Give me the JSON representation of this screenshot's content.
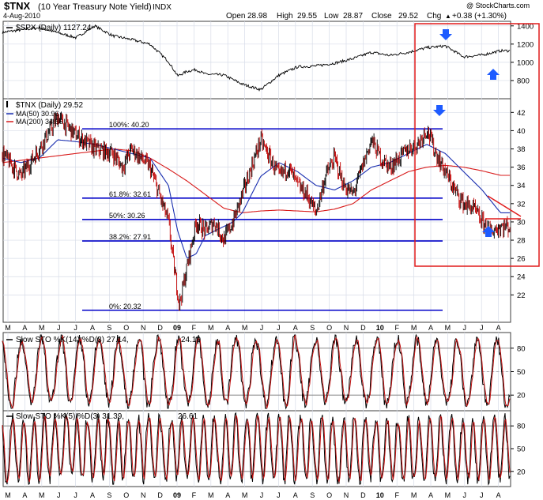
{
  "header": {
    "symbol": "$TNX",
    "name": "(10 Year Treasury Note Yield)",
    "exchange": "INDX",
    "date": "4-Aug-2010",
    "copyright": "@ StockCharts.com",
    "open_label": "Open",
    "open": "28.98",
    "high_label": "High",
    "high": "29.55",
    "low_label": "Low",
    "low": "28.87",
    "close_label": "Close",
    "close": "29.52",
    "chg_label": "Chg",
    "chg": "+0.38 (+1.30%)",
    "chg_arrow": "▲"
  },
  "colors": {
    "grid": "#d7dce8",
    "frame": "#3c3c3c",
    "price": "#000000",
    "ma50": "#1a2fb0",
    "ma200": "#d81b1b",
    "level": "#0000c8",
    "highlight": "#e01b1b",
    "arrow": "#1e5bff",
    "sto_k": "#000000",
    "sto_d": "#c01010"
  },
  "chart_data": [
    {
      "type": "line",
      "title": "$SPX (Daily) 1127.24",
      "legend": "$SPX (Daily) 1127.24",
      "ylim": [
        600,
        1450
      ],
      "yticks": [
        "1400",
        "1200",
        "1000",
        "800"
      ],
      "ytick_values": [
        1400,
        1200,
        1000,
        800
      ],
      "series": [
        {
          "name": "$SPX",
          "x": [
            0,
            2,
            4,
            5,
            6,
            7,
            8,
            9,
            9.5,
            10,
            10.5,
            11,
            12,
            13,
            14,
            15,
            16,
            17,
            18,
            19,
            20,
            21,
            22,
            23,
            24,
            25,
            26,
            27
          ],
          "values": [
            1330,
            1380,
            1270,
            1400,
            1290,
            1250,
            1200,
            1010,
            850,
            900,
            920,
            870,
            860,
            760,
            700,
            860,
            950,
            960,
            990,
            1040,
            1110,
            1075,
            1110,
            1160,
            1180,
            1060,
            1080,
            1127
          ]
        }
      ]
    },
    {
      "type": "line",
      "title": "$TNX (Daily) 29.52",
      "legend": [
        {
          "label": "$TNX (Daily) 29.52",
          "color": "#000000"
        },
        {
          "label": "MA(50) 30.96",
          "color": "#1a2fb0"
        },
        {
          "label": "MA(200) 34.86",
          "color": "#d81b1b"
        }
      ],
      "ylim": [
        19,
        43.5
      ],
      "yticks": [
        "42",
        "40",
        "38",
        "36",
        "34",
        "32",
        "30",
        "28",
        "26",
        "24",
        "22"
      ],
      "ytick_values": [
        42,
        40,
        38,
        36,
        34,
        32,
        30,
        28,
        26,
        24,
        22
      ],
      "fib_levels": [
        {
          "label": "100%: 40.20",
          "value": 40.2
        },
        {
          "label": "61.8%: 32.61",
          "value": 32.61
        },
        {
          "label": "50%: 30.26",
          "value": 30.26
        },
        {
          "label": "38.2%: 27.91",
          "value": 27.91
        },
        {
          "label": "0%: 20.32",
          "value": 20.32
        }
      ],
      "series": [
        {
          "name": "$TNX",
          "x": [
            0,
            1,
            2,
            3,
            4,
            5,
            6,
            6.5,
            7,
            7.5,
            8,
            8.5,
            9,
            9.3,
            9.6,
            10,
            10.5,
            11,
            11.5,
            12,
            12.5,
            13,
            13.5,
            14,
            14.5,
            15,
            15.5,
            16,
            16.5,
            17,
            17.5,
            18,
            18.5,
            19,
            19.5,
            20,
            20.5,
            21,
            21.5,
            22,
            22.5,
            23,
            23.5,
            24,
            24.5,
            25,
            25.5,
            26,
            26.5,
            27
          ],
          "values": [
            37.5,
            35,
            38,
            41.5,
            39.5,
            38,
            37.5,
            36,
            38,
            37,
            36,
            33,
            30,
            25,
            21,
            25,
            30,
            29,
            30,
            28,
            30,
            33,
            36,
            39,
            37,
            35,
            36,
            34,
            33,
            31,
            35,
            37,
            34,
            33,
            36,
            39,
            37,
            36,
            37,
            38,
            38.5,
            40.2,
            37.5,
            35.5,
            33.5,
            32,
            31.5,
            30,
            29,
            29.5
          ]
        },
        {
          "name": "MA(50)",
          "x": [
            0,
            1,
            2,
            3,
            4,
            5,
            6,
            7,
            8,
            9,
            9.5,
            10,
            10.5,
            11,
            11.5,
            12,
            12.5,
            13,
            14,
            15,
            16,
            17,
            18,
            19,
            20,
            21,
            22,
            23,
            24,
            25,
            26,
            27
          ],
          "values": [
            37,
            36.5,
            37,
            39,
            38.8,
            38.5,
            38,
            37.5,
            37,
            34,
            29,
            26,
            26.5,
            28.5,
            29,
            29.5,
            30,
            31,
            35,
            36.5,
            35.5,
            34,
            33.5,
            34.5,
            36,
            36.5,
            37.5,
            38.5,
            37.5,
            35.5,
            33.5,
            31
          ]
        },
        {
          "name": "MA(200)",
          "x": [
            0,
            2,
            4,
            6,
            7,
            8,
            9,
            10,
            11,
            12,
            13,
            14,
            15,
            16,
            17,
            18,
            19,
            20,
            21,
            22,
            23,
            24,
            25,
            26,
            27
          ],
          "values": [
            36.5,
            37,
            37.5,
            38,
            37.8,
            37,
            35.8,
            34.5,
            33,
            31.5,
            31,
            31.2,
            31.3,
            31.2,
            31.1,
            31.4,
            32,
            33.5,
            34.5,
            35.5,
            36,
            36.2,
            36,
            35.6,
            35.1
          ]
        }
      ]
    },
    {
      "type": "line",
      "title": "Slow STO %K(14) %D(3) 27.14, 24.19",
      "legend_prefix": "Slow STO %K(14) %D(3) 27.14,",
      "legend_d": "24.19",
      "ylim": [
        0,
        100
      ],
      "yticks": [
        "80",
        "50",
        "20"
      ],
      "ytick_values": [
        80,
        50,
        20
      ],
      "series": [
        {
          "name": "%K",
          "values": "oscillating 0-100"
        },
        {
          "name": "%D",
          "values": "oscillating 0-100"
        }
      ]
    },
    {
      "type": "line",
      "title": "Slow STO %K(5) %D(3) 31.39, 26.61",
      "legend_prefix": "Slow STO %K(5) %D(3) 31.39,",
      "legend_d": "26.61",
      "ylim": [
        0,
        100
      ],
      "yticks": [
        "80",
        "50",
        "20"
      ],
      "ytick_values": [
        80,
        50,
        20
      ],
      "series": [
        {
          "name": "%K",
          "values": "oscillating 0-100"
        },
        {
          "name": "%D",
          "values": "oscillating 0-100"
        }
      ]
    }
  ],
  "x_axis": {
    "labels": [
      "M",
      "A",
      "M",
      "J",
      "J",
      "A",
      "S",
      "O",
      "N",
      "D",
      "09",
      "F",
      "M",
      "A",
      "M",
      "J",
      "J",
      "A",
      "S",
      "O",
      "N",
      "D",
      "10",
      "F",
      "M",
      "A",
      "M",
      "J",
      "J",
      "A"
    ],
    "bold": [
      "09",
      "10"
    ]
  }
}
